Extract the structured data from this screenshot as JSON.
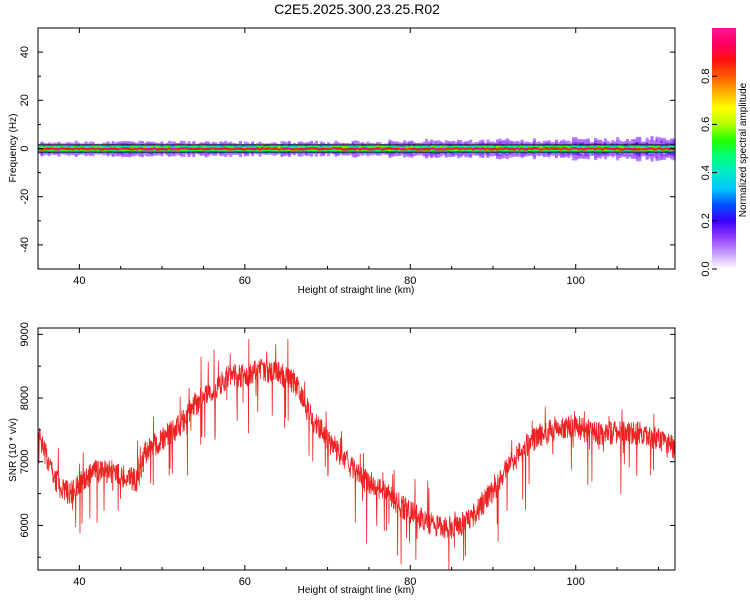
{
  "title": "C2E5.2025.300.23.25.R02",
  "chart_data": [
    {
      "type": "heatmap",
      "name": "spectrogram",
      "xlabel": "Height of straight line (km)",
      "ylabel": "Frequency (Hz)",
      "xlim": [
        35,
        112
      ],
      "ylim": [
        -50,
        50
      ],
      "xticks": [
        40,
        60,
        80,
        100
      ],
      "yticks": [
        40,
        20,
        0,
        -20,
        -40
      ],
      "colorbar": {
        "label": "Normalized spectral amplitude",
        "range": [
          0.0,
          1.0
        ],
        "ticks": [
          0.0,
          0.2,
          0.4,
          0.6,
          0.8
        ],
        "colormap": [
          "#ffffff",
          "#c79aff",
          "#8f3cff",
          "#3a00ff",
          "#0050ff",
          "#00c8ff",
          "#00e8c8",
          "#00ff7a",
          "#23ff00",
          "#b4ff00",
          "#ffff00",
          "#ffb000",
          "#ff5a00",
          "#ff1010",
          "#ff0060",
          "#ff1493"
        ]
      },
      "features": {
        "center_line_hz": 0,
        "band_halfwidth_hz": 1.5,
        "spread_halfwidth_hz_low_height": 2.5,
        "spread_halfwidth_hz_high_height": 4.0
      }
    },
    {
      "type": "line",
      "name": "snr",
      "xlabel": "Height of straight line (km)",
      "ylabel": "SNR (10 * v/v)",
      "xlim": [
        35,
        112
      ],
      "ylim": [
        5300,
        9100
      ],
      "xticks": [
        40,
        60,
        80,
        100
      ],
      "yticks": [
        9000,
        8000,
        7000,
        6000
      ],
      "color": "#ee2222",
      "series": [
        {
          "name": "SNR",
          "x": [
            35,
            36,
            37,
            38,
            39,
            40,
            42,
            44,
            46,
            47,
            48,
            50,
            52,
            54,
            56,
            58,
            60,
            62,
            64,
            66,
            68,
            70,
            72,
            74,
            76,
            78,
            80,
            82,
            84,
            86,
            88,
            90,
            92,
            94,
            96,
            98,
            100,
            102,
            104,
            106,
            108,
            110,
            112
          ],
          "values": [
            7400,
            7100,
            6750,
            6550,
            6500,
            6650,
            6850,
            6850,
            6750,
            6700,
            7150,
            7350,
            7550,
            7900,
            8100,
            8350,
            8350,
            8450,
            8400,
            8250,
            7700,
            7350,
            7050,
            6750,
            6600,
            6400,
            6200,
            6050,
            5950,
            6000,
            6200,
            6550,
            6950,
            7250,
            7450,
            7550,
            7550,
            7450,
            7450,
            7450,
            7450,
            7350,
            7200
          ]
        }
      ]
    }
  ]
}
